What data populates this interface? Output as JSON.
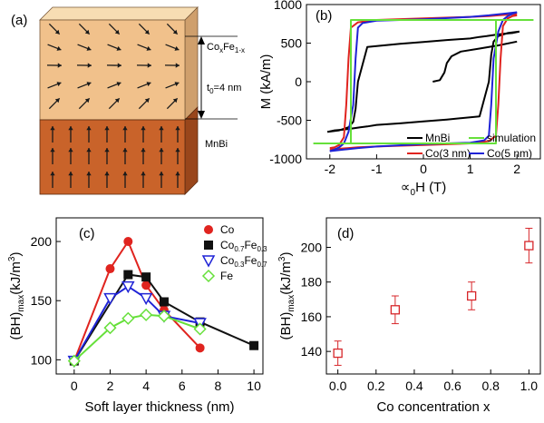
{
  "figure": {
    "panels": [
      {
        "id": "a",
        "label": "(a)",
        "type": "schematic",
        "soft_layer_label_main": "Co",
        "soft_layer_label_sub1": "x",
        "soft_layer_label_mid": "Fe",
        "soft_layer_label_sub2": "1-x",
        "thickness_label_main": "t",
        "thickness_label_sub": "0",
        "thickness_label_rest": "=4 nm",
        "hard_layer_label": "MnBi",
        "colors": {
          "soft_top": "#f7ddb3",
          "soft_front": "#f1c18b",
          "soft_side": "#cf9f6c",
          "hard_front": "#c9632a",
          "hard_side": "#99461b",
          "arrow": "#1a1a1a"
        }
      }
    ]
  },
  "chart_data": [
    {
      "panel": "b",
      "label": "(b)",
      "type": "line",
      "xlabel_main": "∝",
      "xlabel_sub": "0",
      "xlabel_rest": "H (T)",
      "ylabel": "M (kA/m)",
      "xlim": [
        -2.5,
        2.5
      ],
      "ylim": [
        -1000,
        1000
      ],
      "xticks": [
        -2,
        -1,
        0,
        1,
        2
      ],
      "yticks": [
        -1000,
        -500,
        0,
        500,
        1000
      ],
      "legend_position": "bottom-right",
      "series": [
        {
          "name": "MnBi",
          "color": "#000000",
          "x": [
            -2.05,
            -1.8,
            -1.6,
            -1.5,
            -1.45,
            -1.4,
            -1.2,
            -0.5,
            0,
            0.5,
            1.0,
            1.2,
            1.35,
            1.45,
            1.55,
            1.7,
            1.9,
            2.05
          ],
          "y": [
            -650,
            -630,
            -590,
            -520,
            -350,
            0,
            450,
            490,
            515,
            540,
            560,
            580,
            590,
            600,
            610,
            620,
            630,
            650
          ]
        },
        {
          "name": "MnBi",
          "color": "#000000",
          "x": [
            2.05,
            1.8,
            1.6,
            1.5,
            1.45,
            1.4,
            1.2,
            0.5,
            0,
            -0.5,
            -1.0,
            -1.2,
            -1.35,
            -1.45,
            -1.55,
            -1.7,
            -1.9,
            -2.05
          ],
          "y": [
            650,
            630,
            590,
            520,
            350,
            0,
            -450,
            -490,
            -515,
            -540,
            -560,
            -580,
            -590,
            -600,
            -610,
            -620,
            -630,
            -650
          ]
        },
        {
          "name": "MnBi",
          "color": "#000000",
          "x": [
            0.2,
            0.35,
            0.45,
            0.5,
            0.6,
            0.8,
            1.2,
            1.6,
            2.0
          ],
          "y": [
            0,
            20,
            120,
            240,
            330,
            390,
            430,
            470,
            520
          ]
        },
        {
          "name": "Co(3 nm)",
          "color": "#e0241f",
          "x": [
            -2.0,
            -1.9,
            -1.8,
            -1.7,
            -1.65,
            -1.6,
            -1.55,
            -1.4,
            -1.0,
            0,
            1.0,
            1.4,
            1.6,
            1.8,
            2.0
          ],
          "y": [
            -860,
            -850,
            -820,
            -720,
            -300,
            300,
            700,
            770,
            800,
            820,
            840,
            850,
            860,
            870,
            875
          ],
          "points_source": "ascending_branch"
        },
        {
          "name": "Co(3 nm)",
          "color": "#e0241f",
          "x": [
            2.0,
            1.9,
            1.8,
            1.7,
            1.65,
            1.6,
            1.55,
            1.4,
            1.0,
            0,
            -1.0,
            -1.4,
            -1.6,
            -1.8,
            -2.0
          ],
          "y": [
            860,
            850,
            820,
            720,
            300,
            -300,
            -700,
            -770,
            -800,
            -820,
            -840,
            -850,
            -860,
            -870,
            -875
          ]
        },
        {
          "name": "Co(5 nm)",
          "color": "#1f23d6",
          "x": [
            -2.0,
            -1.9,
            -1.8,
            -1.7,
            -1.6,
            -1.5,
            -1.45,
            -1.4,
            -1.3,
            -1.0,
            0,
            1.0,
            1.4,
            1.7,
            2.0
          ],
          "y": [
            -900,
            -880,
            -850,
            -800,
            -650,
            -300,
            300,
            700,
            760,
            790,
            810,
            840,
            860,
            880,
            900
          ]
        },
        {
          "name": "Co(5 nm)",
          "color": "#1f23d6",
          "x": [
            2.0,
            1.9,
            1.8,
            1.7,
            1.6,
            1.5,
            1.45,
            1.4,
            1.3,
            1.0,
            0,
            -1.0,
            -1.4,
            -1.7,
            -2.0
          ],
          "y": [
            900,
            880,
            850,
            800,
            650,
            300,
            -300,
            -700,
            -760,
            -790,
            -810,
            -840,
            -860,
            -880,
            -900
          ]
        },
        {
          "name": "simulation",
          "color": "#66e03a",
          "x": [
            -2.35,
            -1.55,
            -1.55,
            1.7,
            2.35
          ],
          "y": [
            -800,
            -800,
            800,
            800,
            800
          ]
        },
        {
          "name": "simulation",
          "color": "#66e03a",
          "x": [
            2.35,
            1.55,
            1.55,
            -1.7,
            -2.35
          ],
          "y": [
            800,
            800,
            -800,
            -800,
            -800
          ]
        }
      ]
    },
    {
      "panel": "c",
      "label": "(c)",
      "type": "line",
      "xlabel": "Soft layer thickness (nm)",
      "ylabel_main": "(BH)",
      "ylabel_sub": "max",
      "ylabel_rest": "(kJ/m",
      "ylabel_sup": "3",
      "ylabel_end": ")",
      "xlim": [
        -1,
        10.5
      ],
      "ylim": [
        88,
        220
      ],
      "xticks": [
        0,
        2,
        4,
        6,
        8,
        10
      ],
      "yticks": [
        100,
        150,
        200
      ],
      "legend_position": "top-right",
      "series": [
        {
          "name": "Co",
          "color": "#e0241f",
          "marker": "circle",
          "x": [
            0,
            2,
            3,
            4,
            5,
            7
          ],
          "y": [
            99,
            177,
            200,
            163,
            142,
            110
          ]
        },
        {
          "name_main": "Co",
          "name_sub1": "0.7",
          "name_mid": "Fe",
          "name_sub2": "0.3",
          "color": "#111111",
          "marker": "square",
          "x": [
            0,
            3,
            4,
            5,
            7,
            10
          ],
          "y": [
            99,
            172,
            170,
            149,
            132,
            112
          ]
        },
        {
          "name_main": "Co",
          "name_sub1": "0.3",
          "name_mid": "Fe",
          "name_sub2": "0.7",
          "color": "#1f23d6",
          "marker": "triangle-down",
          "x": [
            0,
            2,
            3,
            4,
            5,
            7
          ],
          "y": [
            99,
            152,
            162,
            152,
            137,
            131
          ]
        },
        {
          "name": "Fe",
          "color": "#66e03a",
          "marker": "diamond",
          "x": [
            0,
            2,
            3,
            4,
            5,
            7
          ],
          "y": [
            99,
            127,
            135,
            138,
            137,
            126
          ]
        }
      ]
    },
    {
      "panel": "d",
      "label": "(d)",
      "type": "scatter",
      "xlabel": "Co concentration x",
      "ylabel_main": "(BH)",
      "ylabel_sub": "max",
      "ylabel_rest": "(kJ/m",
      "ylabel_sup": "3",
      "ylabel_end": ")",
      "xlim": [
        -0.06,
        1.06
      ],
      "ylim": [
        127,
        217
      ],
      "xticks": [
        0.0,
        0.2,
        0.4,
        0.6,
        0.8,
        1.0
      ],
      "xtick_labels": [
        "0.0",
        "0.2",
        "0.4",
        "0.6",
        "0.8",
        "1.0"
      ],
      "yticks": [
        140,
        160,
        180,
        200
      ],
      "color": "#d7262a",
      "marker": "open-square",
      "x": [
        0.0,
        0.3,
        0.7,
        1.0
      ],
      "y": [
        139,
        164,
        172,
        201
      ],
      "yerr": [
        7,
        8,
        8,
        10
      ],
      "xerr": [
        0.02,
        0.02,
        0.02,
        0.02
      ]
    }
  ]
}
